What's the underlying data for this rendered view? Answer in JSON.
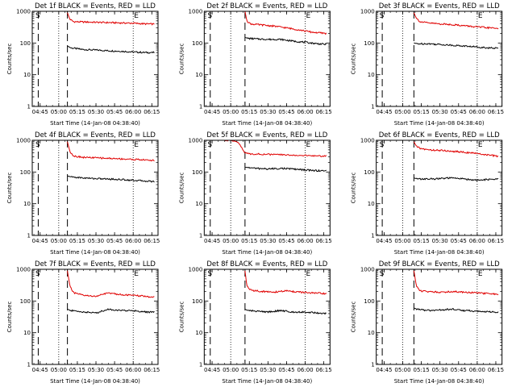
{
  "figure": {
    "start_time_label": "Start Time (14-Jan-08 04:38:40)",
    "ylabel": "Counts/sec",
    "colors": {
      "events": "#000000",
      "lld": "#e00000",
      "axes": "#000000",
      "background": "#ffffff"
    }
  },
  "chart_data": [
    {
      "type": "line",
      "title": "Det 1f BLACK = Events, RED = LLD",
      "xlabel": "Start Time (14-Jan-08 04:38:40)",
      "ylabel": "Counts/sec",
      "yscale": "log",
      "xlim": [
        "04:38:40",
        "06:20:00"
      ],
      "ylim": [
        1,
        1000
      ],
      "xticks": [
        "04:45",
        "05:00",
        "05:15",
        "05:30",
        "05:45",
        "06:00",
        "06:15"
      ],
      "yticks": [
        "1",
        "10",
        "100",
        "1000"
      ],
      "markers": [
        "S",
        "E"
      ],
      "dashed_lines": [
        "04:43:30",
        "05:07:00"
      ],
      "dotted_lines": [
        "05:00:00",
        "06:00:00"
      ],
      "series": [
        {
          "color": "#000000",
          "x": [
            "05:07:00",
            "05:10:00",
            "05:20:00",
            "05:30:00",
            "05:40:00",
            "05:50:00",
            "06:00:00",
            "06:10:00",
            "06:17:00"
          ],
          "y": [
            80,
            70,
            62,
            60,
            57,
            55,
            52,
            50,
            50
          ]
        },
        {
          "color": "#e00000",
          "x": [
            "05:07:00",
            "05:09:00",
            "05:12:00",
            "05:20:00",
            "05:30:00",
            "05:40:00",
            "05:50:00",
            "06:00:00",
            "06:10:00",
            "06:17:00"
          ],
          "y": [
            900,
            560,
            470,
            460,
            450,
            440,
            430,
            420,
            400,
            395
          ]
        }
      ]
    },
    {
      "type": "line",
      "title": "Det 2f BLACK = Events, RED = LLD",
      "xlabel": "Start Time (14-Jan-08 04:38:40)",
      "ylabel": "Counts/sec",
      "yscale": "log",
      "xlim": [
        "04:38:40",
        "06:20:00"
      ],
      "ylim": [
        1,
        1000
      ],
      "xticks": [
        "04:45",
        "05:00",
        "05:15",
        "05:30",
        "05:45",
        "06:00",
        "06:15"
      ],
      "yticks": [
        "1",
        "10",
        "100",
        "1000"
      ],
      "markers": [
        "S",
        "E"
      ],
      "dashed_lines": [
        "04:43:30",
        "05:11:30"
      ],
      "dotted_lines": [
        "05:00:00",
        "06:00:00"
      ],
      "series": [
        {
          "color": "#000000",
          "x": [
            "05:11:30",
            "05:14:00",
            "05:20:00",
            "05:30:00",
            "05:40:00",
            "05:50:00",
            "06:00:00",
            "06:10:00",
            "06:17:00"
          ],
          "y": [
            150,
            140,
            135,
            130,
            130,
            115,
            105,
            95,
            90
          ]
        },
        {
          "color": "#e00000",
          "x": [
            "05:11:30",
            "05:13:00",
            "05:16:00",
            "05:25:00",
            "05:35:00",
            "05:45:00",
            "05:55:00",
            "06:05:00",
            "06:17:00"
          ],
          "y": [
            1000,
            500,
            400,
            370,
            340,
            300,
            260,
            220,
            200
          ]
        }
      ]
    },
    {
      "type": "line",
      "title": "Det 3f BLACK = Events, RED = LLD",
      "xlabel": "Start Time (14-Jan-08 04:38:40)",
      "ylabel": "Counts/sec",
      "yscale": "log",
      "xlim": [
        "04:38:40",
        "06:20:00"
      ],
      "ylim": [
        1,
        1000
      ],
      "xticks": [
        "04:45",
        "05:00",
        "05:15",
        "05:30",
        "05:45",
        "06:00",
        "06:15"
      ],
      "yticks": [
        "1",
        "10",
        "100",
        "1000"
      ],
      "markers": [
        "S",
        "E"
      ],
      "dashed_lines": [
        "04:43:30",
        "05:09:00"
      ],
      "dotted_lines": [
        "05:00:00",
        "06:00:00"
      ],
      "series": [
        {
          "color": "#000000",
          "x": [
            "05:09:00",
            "05:12:00",
            "05:20:00",
            "05:30:00",
            "05:40:00",
            "05:50:00",
            "06:00:00",
            "06:10:00",
            "06:17:00"
          ],
          "y": [
            100,
            95,
            95,
            90,
            85,
            80,
            75,
            70,
            68
          ]
        },
        {
          "color": "#e00000",
          "x": [
            "05:09:00",
            "05:11:00",
            "05:14:00",
            "05:20:00",
            "05:30:00",
            "05:40:00",
            "05:50:00",
            "06:00:00",
            "06:10:00",
            "06:17:00"
          ],
          "y": [
            900,
            600,
            470,
            430,
            400,
            380,
            350,
            320,
            300,
            290
          ]
        }
      ]
    },
    {
      "type": "line",
      "title": "Det 4f BLACK = Events, RED = LLD",
      "xlabel": "Start Time (14-Jan-08 04:38:40)",
      "ylabel": "Counts/sec",
      "yscale": "log",
      "xlim": [
        "04:38:40",
        "06:20:00"
      ],
      "ylim": [
        1,
        1000
      ],
      "xticks": [
        "04:45",
        "05:00",
        "05:15",
        "05:30",
        "05:45",
        "06:00",
        "06:15"
      ],
      "yticks": [
        "1",
        "10",
        "100",
        "1000"
      ],
      "markers": [
        "S",
        "E"
      ],
      "dashed_lines": [
        "04:43:30",
        "05:07:00"
      ],
      "dotted_lines": [
        "05:00:00",
        "06:00:00"
      ],
      "series": [
        {
          "color": "#000000",
          "x": [
            "05:07:00",
            "05:10:00",
            "05:20:00",
            "05:30:00",
            "05:40:00",
            "05:50:00",
            "06:00:00",
            "06:10:00",
            "06:17:00"
          ],
          "y": [
            75,
            70,
            65,
            62,
            60,
            58,
            55,
            52,
            50
          ]
        },
        {
          "color": "#e00000",
          "x": [
            "05:07:00",
            "05:09:00",
            "05:12:00",
            "05:20:00",
            "05:30:00",
            "05:40:00",
            "05:50:00",
            "06:00:00",
            "06:10:00",
            "06:17:00"
          ],
          "y": [
            900,
            450,
            320,
            290,
            280,
            270,
            260,
            250,
            240,
            230
          ]
        }
      ]
    },
    {
      "type": "line",
      "title": "Det 5f BLACK = Events, RED = LLD",
      "xlabel": "Start Time (14-Jan-08 04:38:40)",
      "ylabel": "Counts/sec",
      "yscale": "log",
      "xlim": [
        "04:38:40",
        "06:20:00"
      ],
      "ylim": [
        1,
        1000
      ],
      "xticks": [
        "04:45",
        "05:00",
        "05:15",
        "05:30",
        "05:45",
        "06:00",
        "06:15"
      ],
      "yticks": [
        "1",
        "10",
        "100",
        "1000"
      ],
      "markers": [
        "S",
        "E"
      ],
      "dashed_lines": [
        "04:43:30",
        "05:11:30"
      ],
      "dotted_lines": [
        "05:00:00",
        "06:00:00"
      ],
      "series": [
        {
          "color": "#000000",
          "x": [
            "05:11:30",
            "05:14:00",
            "05:20:00",
            "05:30:00",
            "05:40:00",
            "05:50:00",
            "06:00:00",
            "06:10:00",
            "06:17:00"
          ],
          "y": [
            140,
            140,
            130,
            125,
            130,
            125,
            115,
            110,
            110
          ]
        },
        {
          "color": "#e00000",
          "x": [
            "04:51:00",
            "05:00:00",
            "05:04:00",
            "05:07:00",
            "05:09:00",
            "05:11:00",
            "05:13:00",
            "05:20:00",
            "05:30:00",
            "05:40:00",
            "05:50:00",
            "06:00:00",
            "06:10:00",
            "06:17:00"
          ],
          "y": [
            1000,
            1000,
            950,
            800,
            550,
            420,
            380,
            370,
            360,
            350,
            340,
            330,
            320,
            320
          ]
        }
      ]
    },
    {
      "type": "line",
      "title": "Det 6f BLACK = Events, RED = LLD",
      "xlabel": "Start Time (14-Jan-08 04:38:40)",
      "ylabel": "Counts/sec",
      "yscale": "log",
      "xlim": [
        "04:38:40",
        "06:20:00"
      ],
      "ylim": [
        1,
        1000
      ],
      "xticks": [
        "04:45",
        "05:00",
        "05:15",
        "05:30",
        "05:45",
        "06:00",
        "06:15"
      ],
      "yticks": [
        "1",
        "10",
        "100",
        "1000"
      ],
      "markers": [
        "S",
        "E"
      ],
      "dashed_lines": [
        "04:43:30",
        "05:09:00"
      ],
      "dotted_lines": [
        "05:00:00",
        "06:00:00"
      ],
      "series": [
        {
          "color": "#000000",
          "x": [
            "05:09:00",
            "05:12:00",
            "05:20:00",
            "05:30:00",
            "05:40:00",
            "05:50:00",
            "06:00:00",
            "06:10:00",
            "06:17:00"
          ],
          "y": [
            65,
            60,
            60,
            62,
            65,
            60,
            55,
            58,
            60
          ]
        },
        {
          "color": "#e00000",
          "x": [
            "05:09:00",
            "05:11:00",
            "05:14:00",
            "05:20:00",
            "05:30:00",
            "05:40:00",
            "05:50:00",
            "06:00:00",
            "06:10:00",
            "06:17:00"
          ],
          "y": [
            900,
            650,
            560,
            500,
            480,
            450,
            420,
            380,
            340,
            310
          ]
        }
      ]
    },
    {
      "type": "line",
      "title": "Det 7f BLACK = Events, RED = LLD",
      "xlabel": "Start Time (14-Jan-08 04:38:40)",
      "ylabel": "Counts/sec",
      "yscale": "log",
      "xlim": [
        "04:38:40",
        "06:20:00"
      ],
      "ylim": [
        1,
        1000
      ],
      "xticks": [
        "04:45",
        "05:00",
        "05:15",
        "05:30",
        "05:45",
        "06:00",
        "06:15"
      ],
      "yticks": [
        "1",
        "10",
        "100",
        "1000"
      ],
      "markers": [
        "S",
        "E"
      ],
      "dashed_lines": [
        "04:43:30",
        "05:07:00"
      ],
      "dotted_lines": [
        "05:00:00",
        "06:00:00"
      ],
      "series": [
        {
          "color": "#000000",
          "x": [
            "05:07:00",
            "05:10:00",
            "05:20:00",
            "05:30:00",
            "05:40:00",
            "05:50:00",
            "06:00:00",
            "06:10:00",
            "06:17:00"
          ],
          "y": [
            55,
            50,
            45,
            42,
            55,
            50,
            50,
            45,
            45
          ]
        },
        {
          "color": "#e00000",
          "x": [
            "05:07:00",
            "05:09:00",
            "05:12:00",
            "05:20:00",
            "05:30:00",
            "05:40:00",
            "05:50:00",
            "06:00:00",
            "06:10:00",
            "06:17:00"
          ],
          "y": [
            900,
            300,
            180,
            150,
            140,
            180,
            160,
            150,
            140,
            130
          ]
        }
      ]
    },
    {
      "type": "line",
      "title": "Det 8f BLACK = Events, RED = LLD",
      "xlabel": "Start Time (14-Jan-08 04:38:40)",
      "ylabel": "Counts/sec",
      "yscale": "log",
      "xlim": [
        "04:38:40",
        "06:20:00"
      ],
      "ylim": [
        1,
        1000
      ],
      "xticks": [
        "04:45",
        "05:00",
        "05:15",
        "05:30",
        "05:45",
        "06:00",
        "06:15"
      ],
      "yticks": [
        "1",
        "10",
        "100",
        "1000"
      ],
      "markers": [
        "S",
        "E"
      ],
      "dashed_lines": [
        "04:43:30",
        "05:11:30"
      ],
      "dotted_lines": [
        "05:00:00",
        "06:00:00"
      ],
      "series": [
        {
          "color": "#000000",
          "x": [
            "05:11:30",
            "05:14:00",
            "05:20:00",
            "05:30:00",
            "05:40:00",
            "05:50:00",
            "06:00:00",
            "06:10:00",
            "06:17:00"
          ],
          "y": [
            55,
            50,
            48,
            45,
            50,
            45,
            45,
            42,
            40
          ]
        },
        {
          "color": "#e00000",
          "x": [
            "05:11:30",
            "05:13:00",
            "05:16:00",
            "05:25:00",
            "05:35:00",
            "05:45:00",
            "05:55:00",
            "06:05:00",
            "06:17:00"
          ],
          "y": [
            900,
            300,
            220,
            200,
            190,
            210,
            190,
            180,
            170
          ]
        }
      ]
    },
    {
      "type": "line",
      "title": "Det 9f BLACK = Events, RED = LLD",
      "xlabel": "Start Time (14-Jan-08 04:38:40)",
      "ylabel": "Counts/sec",
      "yscale": "log",
      "xlim": [
        "04:38:40",
        "06:20:00"
      ],
      "ylim": [
        1,
        1000
      ],
      "xticks": [
        "04:45",
        "05:00",
        "05:15",
        "05:30",
        "05:45",
        "06:00",
        "06:15"
      ],
      "yticks": [
        "1",
        "10",
        "100",
        "1000"
      ],
      "markers": [
        "S",
        "E"
      ],
      "dashed_lines": [
        "04:43:30",
        "05:09:00"
      ],
      "dotted_lines": [
        "05:00:00",
        "06:00:00"
      ],
      "series": [
        {
          "color": "#000000",
          "x": [
            "05:09:00",
            "05:12:00",
            "05:20:00",
            "05:30:00",
            "05:40:00",
            "05:50:00",
            "06:00:00",
            "06:10:00",
            "06:17:00"
          ],
          "y": [
            60,
            55,
            50,
            52,
            55,
            50,
            48,
            45,
            45
          ]
        },
        {
          "color": "#e00000",
          "x": [
            "05:09:00",
            "05:11:00",
            "05:14:00",
            "05:20:00",
            "05:30:00",
            "05:40:00",
            "05:50:00",
            "06:00:00",
            "06:10:00",
            "06:17:00"
          ],
          "y": [
            900,
            300,
            210,
            200,
            190,
            200,
            190,
            180,
            170,
            160
          ]
        }
      ]
    }
  ]
}
